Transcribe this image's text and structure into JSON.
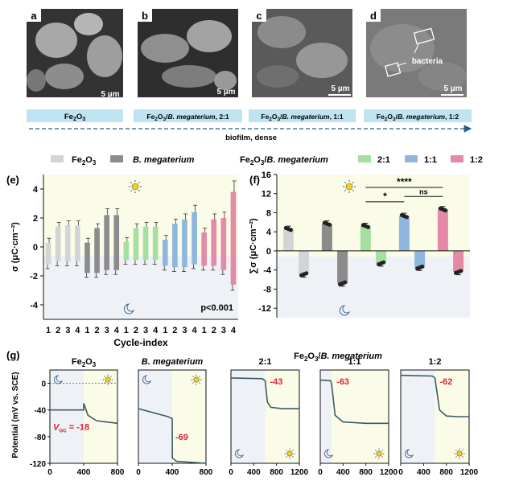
{
  "figure": {
    "panels_top": [
      {
        "letter": "a",
        "caption": "Fe2O3",
        "scale": "5 µm"
      },
      {
        "letter": "b",
        "caption": "Fe2O3/B. megaterium, 2:1",
        "scale": "5 µm"
      },
      {
        "letter": "c",
        "caption": "Fe2O3/B. megaterium, 1:1",
        "scale": "5 µm"
      },
      {
        "letter": "d",
        "caption": "Fe2O3/B. megaterium, 1:2",
        "scale": "5 µm",
        "annotation": "bacteria"
      }
    ],
    "arrow_label": "biofilm, dense",
    "legend": {
      "fe2o3": "Fe2O3",
      "bmeg": "B. megaterium",
      "combo": "Fe2O3/B. megaterium",
      "r21": "2:1",
      "r11": "1:1",
      "r12": "1:2"
    },
    "colors": {
      "fe2o3": "#d4d4d4",
      "bmeg": "#8c8c8c",
      "r21": "#a7dfa0",
      "r11": "#8fb7dd",
      "r12": "#e58aa6",
      "light_bg": "#fbfce8",
      "dark_bg": "#eef2f7",
      "sem_caption_bg": "#bfe3f1",
      "arrow": "#1f5f87",
      "line": "#3d5a66",
      "red_label": "#e0203c"
    }
  },
  "chart_data": [
    {
      "id": "e",
      "type": "bar",
      "title": "(e)",
      "ylabel": "σ (μC·cm⁻²)",
      "xlabel": "Cycle-index",
      "ylim": [
        -5,
        5
      ],
      "yticks": [
        -4,
        -2,
        0,
        2,
        4
      ],
      "xtick_labels": [
        "1",
        "2",
        "3",
        "4",
        "1",
        "2",
        "3",
        "4",
        "1",
        "2",
        "3",
        "4",
        "1",
        "2",
        "3",
        "4",
        "1",
        "2",
        "3",
        "4"
      ],
      "groups": [
        {
          "name": "Fe2O3",
          "up": [
            0.3,
            1.4,
            1.5,
            1.5
          ],
          "down": [
            -1.2,
            -1.0,
            -1.0,
            -1.0
          ]
        },
        {
          "name": "B. megaterium",
          "up": [
            0.3,
            1.3,
            2.2,
            2.2
          ],
          "down": [
            -1.8,
            -1.8,
            -1.6,
            -1.6
          ]
        },
        {
          "name": "2:1",
          "up": [
            0.35,
            1.3,
            1.4,
            1.4
          ],
          "down": [
            -0.9,
            -0.9,
            -0.9,
            -0.9
          ]
        },
        {
          "name": "1:1",
          "up": [
            0.5,
            1.6,
            1.9,
            2.4
          ],
          "down": [
            -1.3,
            -1.4,
            -1.4,
            -1.2
          ]
        },
        {
          "name": "1:2",
          "up": [
            1.0,
            1.9,
            2.0,
            3.8
          ],
          "down": [
            -1.3,
            -1.3,
            -1.6,
            -2.6
          ]
        }
      ],
      "annotation": "p<0.001"
    },
    {
      "id": "f",
      "type": "bar",
      "title": "(f)",
      "ylabel": "∑σ (μC·cm⁻²)",
      "ylim": [
        -14,
        16
      ],
      "yticks": [
        -12,
        -8,
        -4,
        0,
        4,
        8,
        12,
        16
      ],
      "groups": [
        {
          "name": "Fe2O3",
          "up": 4.6,
          "down": -4.9
        },
        {
          "name": "B. megaterium",
          "up": 5.7,
          "down": -6.8
        },
        {
          "name": "2:1",
          "up": 5.2,
          "down": -2.6
        },
        {
          "name": "1:1",
          "up": 7.3,
          "down": -3.5
        },
        {
          "name": "1:2",
          "up": 8.7,
          "down": -4.4
        }
      ],
      "significance": [
        "*",
        "ns",
        "****"
      ]
    },
    {
      "id": "g",
      "type": "line",
      "title": "(g)",
      "ylabel": "Potential (mV vs. SCE)",
      "ylim": [
        -120,
        20
      ],
      "yticks": [
        -120,
        -80,
        -40,
        0
      ],
      "panels": [
        {
          "title": "Fe2O3",
          "xmax": 800,
          "xticks": [
            0,
            400,
            800
          ],
          "switch": 400,
          "label": "Voc = -18",
          "dotted_zero": true,
          "points": [
            [
              0,
              -40
            ],
            [
              400,
              -40
            ],
            [
              401,
              -30
            ],
            [
              450,
              -48
            ],
            [
              550,
              -56
            ],
            [
              800,
              -60
            ]
          ]
        },
        {
          "title": "B. megaterium",
          "xmax": 800,
          "xticks": [
            0,
            400,
            800
          ],
          "switch": 400,
          "label": "-69",
          "points": [
            [
              0,
              -38
            ],
            [
              350,
              -50
            ],
            [
              400,
              -53
            ],
            [
              402,
              -112
            ],
            [
              450,
              -117
            ],
            [
              800,
              -120
            ]
          ]
        },
        {
          "title": "2:1",
          "xmax": 1200,
          "xticks": [
            0,
            400,
            800,
            1200
          ],
          "switch": 600,
          "label": "-43",
          "points": [
            [
              0,
              8
            ],
            [
              550,
              7
            ],
            [
              600,
              4
            ],
            [
              640,
              -28
            ],
            [
              700,
              -36
            ],
            [
              900,
              -38
            ],
            [
              1200,
              -38
            ]
          ]
        },
        {
          "title": "1:1",
          "xmax": 1200,
          "xticks": [
            0,
            400,
            800,
            1200
          ],
          "switch": 200,
          "label": "-63",
          "points": [
            [
              0,
              5
            ],
            [
              180,
              4
            ],
            [
              200,
              -2
            ],
            [
              260,
              -48
            ],
            [
              400,
              -58
            ],
            [
              800,
              -60
            ],
            [
              1200,
              -60
            ]
          ]
        },
        {
          "title": "1:2",
          "xmax": 1200,
          "xticks": [
            0,
            400,
            800,
            1200
          ],
          "switch": 600,
          "label": "-62",
          "points": [
            [
              0,
              12
            ],
            [
              550,
              11
            ],
            [
              600,
              8
            ],
            [
              680,
              -40
            ],
            [
              800,
              -49
            ],
            [
              1000,
              -50
            ],
            [
              1200,
              -50
            ]
          ]
        }
      ]
    }
  ],
  "panel_g_subtitle": "Fe2O3/B. megaterium"
}
